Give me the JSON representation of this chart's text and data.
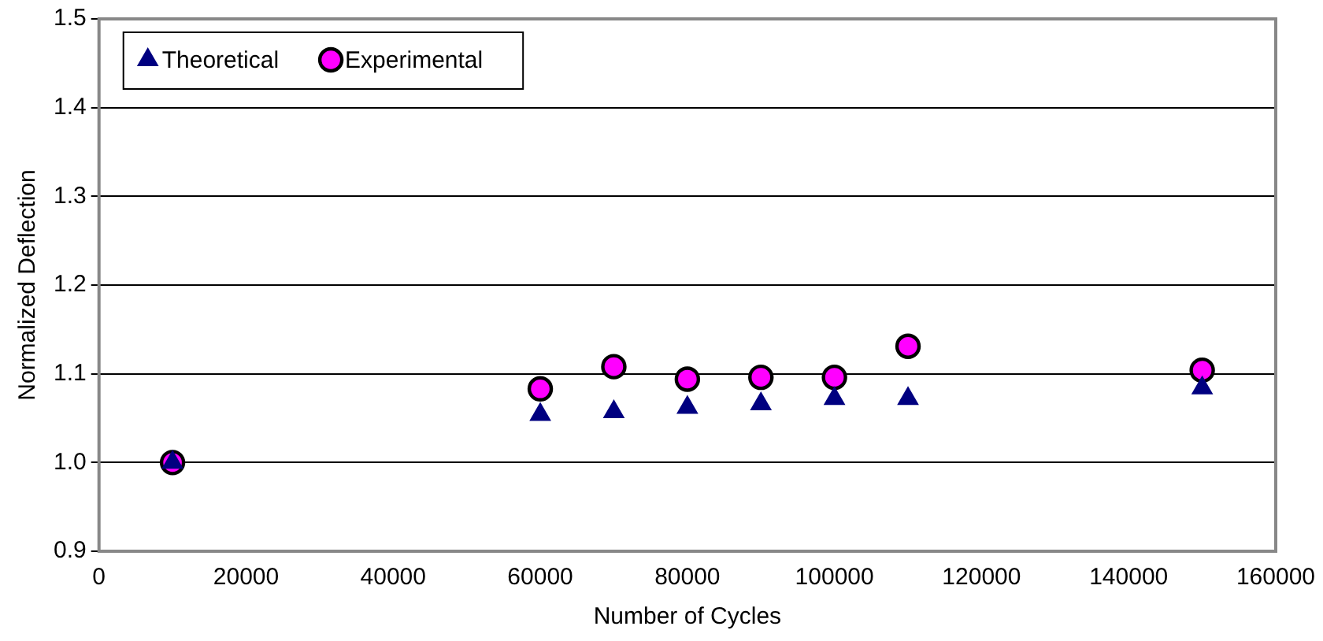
{
  "chart_data": {
    "type": "scatter",
    "xlabel": "Number of Cycles",
    "ylabel": "Normalized Deflection",
    "x": [
      10000,
      60000,
      70000,
      80000,
      90000,
      100000,
      110000,
      150000
    ],
    "series": [
      {
        "name": "Theoretical",
        "color": "#000080",
        "marker": "triangle",
        "values": [
          1.0,
          1.054,
          1.057,
          1.062,
          1.066,
          1.072,
          1.072,
          1.084
        ]
      },
      {
        "name": "Experimental",
        "color": "#ff00ff",
        "marker": "circle",
        "values": [
          1.0,
          1.083,
          1.108,
          1.094,
          1.096,
          1.096,
          1.131,
          1.104
        ]
      }
    ],
    "xlim": [
      0,
      160000
    ],
    "xticks": [
      0,
      20000,
      40000,
      60000,
      80000,
      100000,
      120000,
      140000,
      160000
    ],
    "ylim": [
      0.9,
      1.5
    ],
    "yticks": [
      0.9,
      {
        "value": 1,
        "label": "1.0"
      },
      1.1,
      1.2,
      1.3,
      1.4,
      1.5
    ],
    "grid": "y",
    "legend": "top left"
  }
}
